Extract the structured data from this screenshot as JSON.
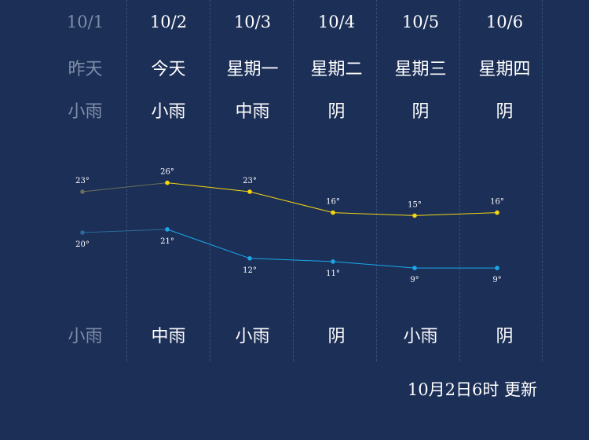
{
  "days": [
    {
      "date": "10/1",
      "weekday": "昨天",
      "weather_day": "小雨",
      "weather_night": "小雨",
      "high": 23,
      "low": 20,
      "past": true
    },
    {
      "date": "10/2",
      "weekday": "今天",
      "weather_day": "小雨",
      "weather_night": "中雨",
      "high": 26,
      "low": 21,
      "past": false
    },
    {
      "date": "10/3",
      "weekday": "星期一",
      "weather_day": "中雨",
      "weather_night": "小雨",
      "high": 23,
      "low": 12,
      "past": false
    },
    {
      "date": "10/4",
      "weekday": "星期二",
      "weather_day": "阴",
      "weather_night": "阴",
      "high": 16,
      "low": 11,
      "past": false
    },
    {
      "date": "10/5",
      "weekday": "星期三",
      "weather_day": "阴",
      "weather_night": "小雨",
      "high": 15,
      "low": 9,
      "past": false
    },
    {
      "date": "10/6",
      "weekday": "星期四",
      "weather_day": "阴",
      "weather_night": "阴",
      "high": 16,
      "low": 9,
      "past": false
    }
  ],
  "degree_symbol": "°",
  "update_text": "10月2日6时 更新",
  "colors": {
    "background": "#1c2f57",
    "high_line": "#f5d60f",
    "low_line": "#1ba7e8",
    "past_high": "#6b6e5c",
    "past_low": "#2e6a99",
    "past_text": "#7f8ea8"
  },
  "chart_data": {
    "type": "line",
    "categories": [
      "10/1",
      "10/2",
      "10/3",
      "10/4",
      "10/5",
      "10/6"
    ],
    "series": [
      {
        "values": [
          23,
          26,
          23,
          16,
          15,
          16
        ]
      },
      {
        "values": [
          20,
          21,
          12,
          11,
          9,
          9
        ]
      }
    ]
  }
}
